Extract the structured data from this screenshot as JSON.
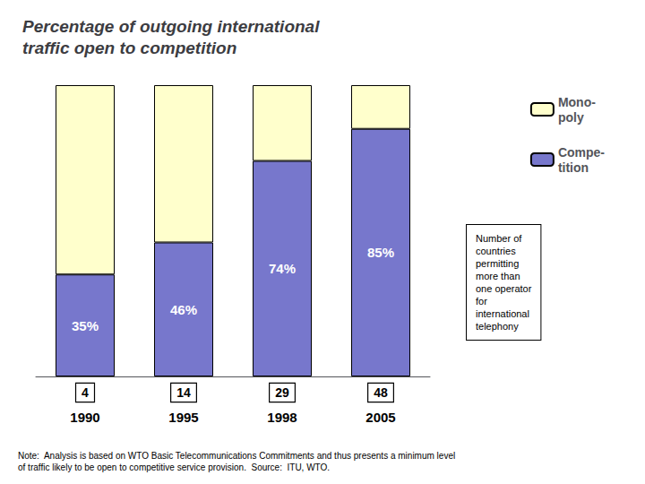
{
  "chart_data": {
    "type": "bar",
    "title": "Percentage of outgoing international\ntraffic open to competition",
    "categories": [
      "1990",
      "1995",
      "1998",
      "2005"
    ],
    "series": [
      {
        "name": "Compe-\ntition",
        "color": "#7777CC",
        "values": [
          35,
          46,
          74,
          85
        ],
        "value_labels": [
          "35%",
          "46%",
          "74%",
          "85%"
        ]
      },
      {
        "name": "Mono-\npoly",
        "color": "#FFFFCC",
        "values": [
          65,
          54,
          26,
          15
        ]
      }
    ],
    "counts": [
      4,
      14,
      29,
      48
    ],
    "stacked": true,
    "ylim": [
      0,
      100
    ],
    "tick_labels": "x",
    "grid": false,
    "legend": "right",
    "annotation": "Number of\ncountries\npermitting\nmore than\none operator\nfor\ninternational\ntelephony",
    "note": "Note:  Analysis is based on WTO Basic Telecommunications Commitments and thus presents a minimum level\nof traffic likely to be open to competitive service provision.  Source:  ITU, WTO."
  }
}
